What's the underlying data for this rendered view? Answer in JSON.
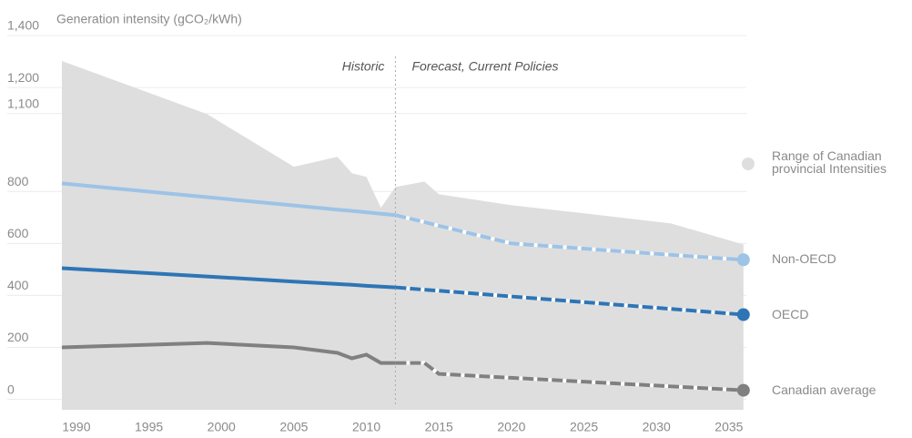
{
  "chart_data": {
    "type": "line",
    "title": "Generation intensity (gCO₂/kWh)",
    "annotations": {
      "historic": "Historic",
      "forecast": "Forecast, Current Policies",
      "divider": 2012
    },
    "x": [
      1989,
      1999,
      2005,
      2008,
      2009,
      2010,
      2011,
      2012,
      2014,
      2015,
      2020,
      2025,
      2031,
      2036
    ],
    "xlim": [
      1989,
      2036.2
    ],
    "xticks": [
      1990,
      1995,
      2000,
      2005,
      2010,
      2015,
      2020,
      2025,
      2030,
      2035
    ],
    "ylim": [
      -75,
      1400
    ],
    "yticks": [
      0,
      200,
      400,
      600,
      800,
      {
        "value": 1100,
        "label": "1,100"
      },
      {
        "value": 1200,
        "label": "1,200"
      },
      {
        "value": 1400,
        "label": "1,400"
      }
    ],
    "grid": true,
    "series": [
      {
        "name": "Range of Canadian provincial Intensities",
        "kind": "area",
        "color": "#dedede",
        "values": [
          1267,
          1063,
          860,
          898,
          835,
          821,
          702,
          782,
          803,
          754,
          712,
          681,
          642,
          561
        ]
      },
      {
        "name": "Non-OECD",
        "kind": "line",
        "color": "#9dc3e6",
        "values": [
          796,
          743,
          711,
          695,
          690,
          685,
          679,
          674,
          647,
          633,
          565,
          545,
          521,
          502
        ]
      },
      {
        "name": "OECD",
        "kind": "line",
        "color": "#2e75b6",
        "values": [
          470,
          438,
          418,
          409,
          406,
          402,
          399,
          396,
          387,
          383,
          361,
          339,
          313,
          291
        ]
      },
      {
        "name": "Canadian average",
        "kind": "line",
        "color": "#808080",
        "values": [
          165,
          182,
          165,
          144,
          123,
          137,
          105,
          105,
          105,
          63,
          48,
          33,
          15,
          0
        ]
      }
    ]
  }
}
